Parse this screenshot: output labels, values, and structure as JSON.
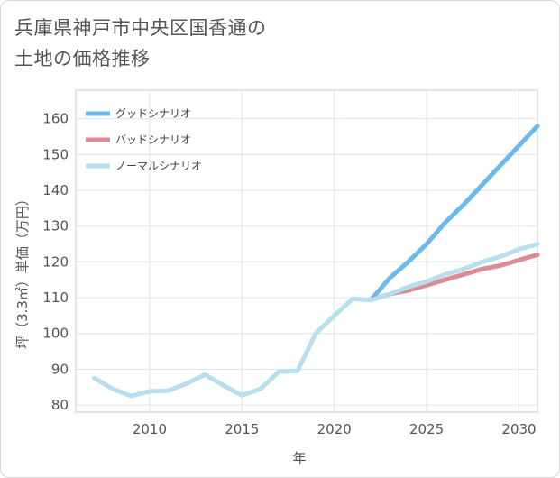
{
  "title_lines": [
    "兵庫県神戸市中央区国香通の",
    "土地の価格推移"
  ],
  "chart_data": {
    "type": "line",
    "title": "兵庫県神戸市中央区国香通の土地の価格推移",
    "xlabel": "年",
    "ylabel": "坪（3.3㎡）単価（万円）",
    "xlim": [
      2006,
      2031
    ],
    "ylim": [
      78,
      168
    ],
    "xticks": [
      2010,
      2015,
      2020,
      2025,
      2030
    ],
    "yticks": [
      80,
      90,
      100,
      110,
      120,
      130,
      140,
      150,
      160
    ],
    "grid": true,
    "legend_position": "top-left",
    "series": [
      {
        "name": "グッドシナリオ",
        "color": "#6cb9ea",
        "x": [
          2022,
          2023,
          2024,
          2025,
          2026,
          2027,
          2028,
          2029,
          2030,
          2031
        ],
        "values": [
          109.5,
          115.5,
          120,
          125,
          131,
          136,
          141.5,
          147,
          152.5,
          158
        ]
      },
      {
        "name": "バッドシナリオ",
        "color": "#dc8a93",
        "x": [
          2022,
          2023,
          2024,
          2025,
          2026,
          2027,
          2028,
          2029,
          2030,
          2031
        ],
        "values": [
          109.5,
          111,
          112,
          113.5,
          115,
          116.5,
          118,
          119,
          120.5,
          122
        ]
      },
      {
        "name": "ノーマルシナリオ",
        "color": "#b7dff0",
        "x": [
          2007,
          2008,
          2009,
          2010,
          2011,
          2012,
          2013,
          2014,
          2015,
          2016,
          2017,
          2018,
          2019,
          2020,
          2021,
          2022,
          2023,
          2024,
          2025,
          2026,
          2027,
          2028,
          2029,
          2030,
          2031
        ],
        "values": [
          87.5,
          84.5,
          82.5,
          83.8,
          84,
          86,
          88.5,
          85.5,
          82.7,
          84.5,
          89.3,
          89.5,
          100,
          105,
          109.7,
          109.3,
          111,
          113,
          114.5,
          116.5,
          118,
          120,
          121.5,
          123.5,
          125
        ]
      }
    ]
  }
}
